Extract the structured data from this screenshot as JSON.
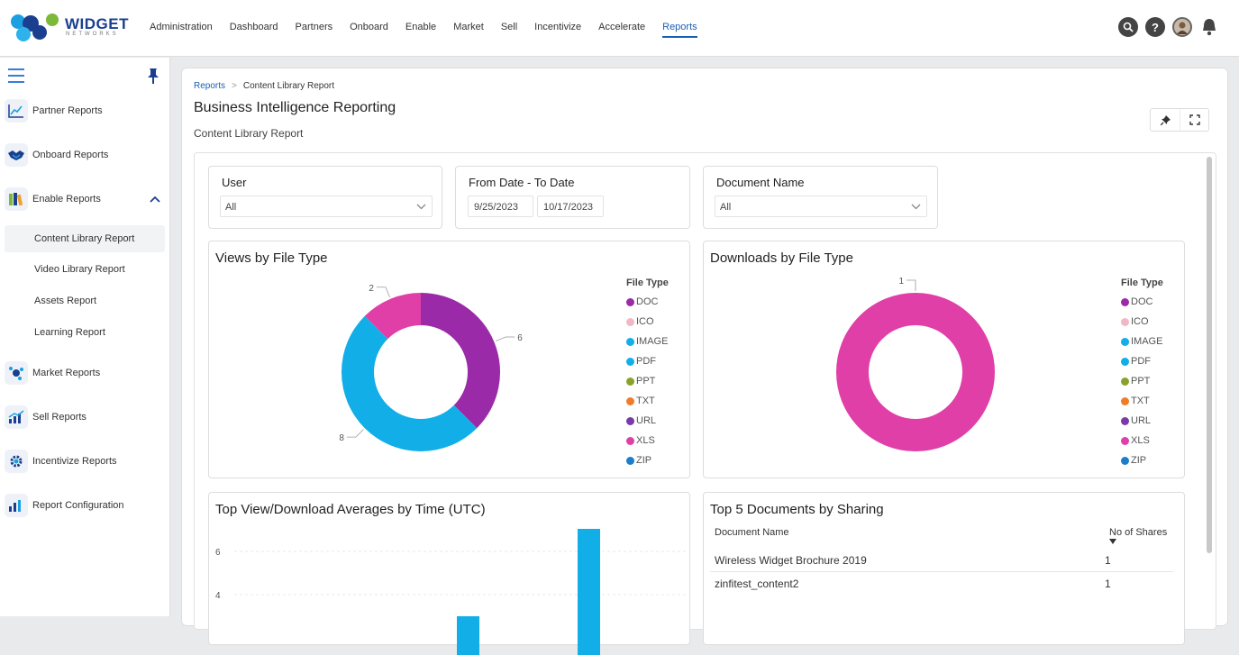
{
  "brand": {
    "name": "WIDGET",
    "sub": "NETWORKS"
  },
  "nav": [
    {
      "label": "Administration"
    },
    {
      "label": "Dashboard"
    },
    {
      "label": "Partners"
    },
    {
      "label": "Onboard"
    },
    {
      "label": "Enable"
    },
    {
      "label": "Market"
    },
    {
      "label": "Sell"
    },
    {
      "label": "Incentivize"
    },
    {
      "label": "Accelerate"
    },
    {
      "label": "Reports",
      "active": true
    }
  ],
  "sidebar": {
    "partner": "Partner Reports",
    "onboard": "Onboard Reports",
    "enable": "Enable Reports",
    "enable_sub": [
      "Content Library Report",
      "Video Library Report",
      "Assets Report",
      "Learning Report"
    ],
    "market": "Market Reports",
    "sell": "Sell Reports",
    "incentivize": "Incentivize Reports",
    "config": "Report Configuration"
  },
  "breadcrumb": {
    "root": "Reports",
    "current": "Content Library Report"
  },
  "page": {
    "title": "Business Intelligence Reporting",
    "subtitle": "Content Library Report"
  },
  "filters": {
    "user": {
      "label": "User",
      "value": "All"
    },
    "date": {
      "label": "From Date - To Date",
      "from": "9/25/2023",
      "to": "10/17/2023"
    },
    "doc": {
      "label": "Document Name",
      "value": "All"
    }
  },
  "legend": {
    "title": "File Type",
    "items": [
      {
        "name": "DOC",
        "color": "#9b2aa8"
      },
      {
        "name": "ICO",
        "color": "#f0b7c6"
      },
      {
        "name": "IMAGE",
        "color": "#11aee8"
      },
      {
        "name": "PDF",
        "color": "#11aee8"
      },
      {
        "name": "PPT",
        "color": "#8aa22b"
      },
      {
        "name": "TXT",
        "color": "#f07c2a"
      },
      {
        "name": "URL",
        "color": "#7a3aa8"
      },
      {
        "name": "XLS",
        "color": "#e03fa8"
      },
      {
        "name": "ZIP",
        "color": "#1a7fc8"
      }
    ]
  },
  "chart_data": [
    {
      "type": "pie",
      "title": "Views by File Type",
      "slices": [
        {
          "name": "DOC",
          "value": 6,
          "color": "#9b2aa8"
        },
        {
          "name": "IMAGE",
          "value": 8,
          "color": "#11aee8"
        },
        {
          "name": "XLS",
          "value": 2,
          "color": "#e03fa8"
        }
      ]
    },
    {
      "type": "pie",
      "title": "Downloads by File Type",
      "slices": [
        {
          "name": "XLS",
          "value": 1,
          "color": "#e03fa8"
        }
      ]
    },
    {
      "type": "bar",
      "title": "Top View/Download Averages by Time (UTC)",
      "yticks": [
        "6",
        "4"
      ]
    }
  ],
  "sharing": {
    "title": "Top 5 Documents by Sharing",
    "col1": "Document Name",
    "col2": "No of Shares",
    "rows": [
      {
        "name": "Wireless Widget Brochure 2019",
        "shares": "1"
      },
      {
        "name": "zinfitest_content2",
        "shares": "1"
      }
    ]
  }
}
